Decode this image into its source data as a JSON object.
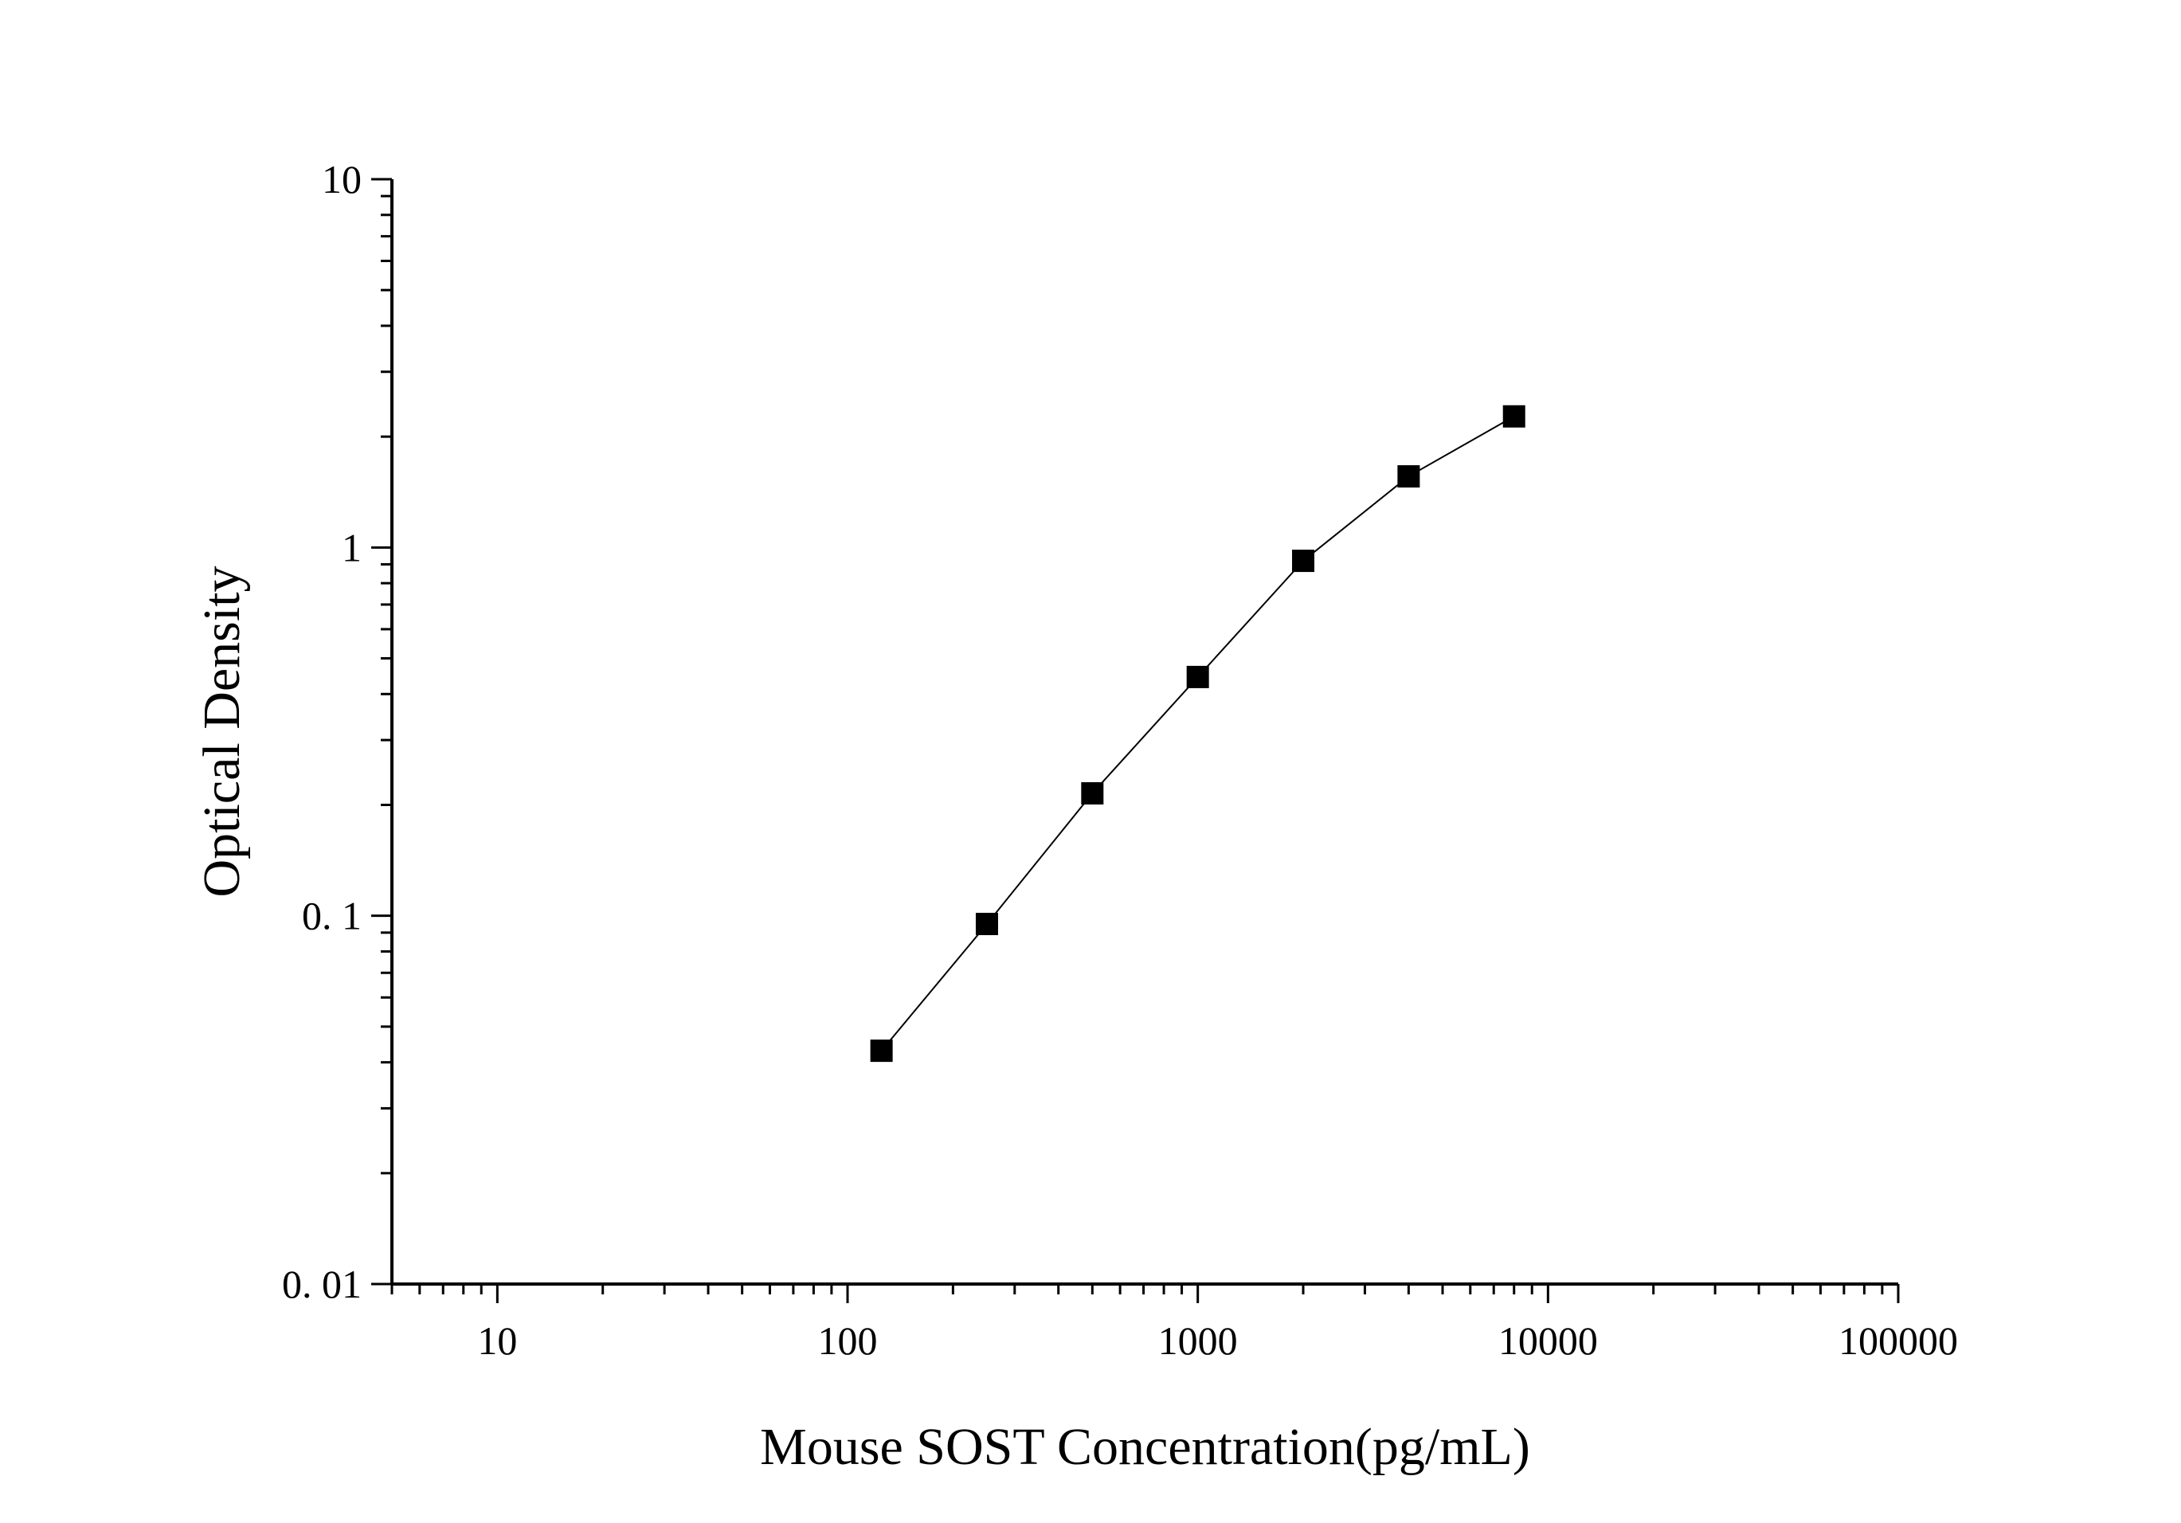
{
  "chart_data": {
    "type": "scatter",
    "title": "",
    "xlabel": "Mouse SOST Concentration(pg/mL)",
    "ylabel": "Optical Density",
    "x_scale": "log",
    "y_scale": "log",
    "xlim": [
      5,
      100000
    ],
    "ylim": [
      0.01,
      10
    ],
    "x_ticks": [
      10,
      100,
      1000,
      10000,
      100000
    ],
    "x_tick_labels": [
      "10",
      "100",
      "1000",
      "10000",
      "100000"
    ],
    "y_ticks": [
      0.01,
      0.1,
      1,
      10
    ],
    "y_tick_labels": [
      "0. 01",
      "0. 1",
      "1",
      "10"
    ],
    "grid": false,
    "legend": "none",
    "series": [
      {
        "marker": "square",
        "connected": true,
        "color": "#000000",
        "x": [
          125,
          250,
          500,
          1000,
          2000,
          4000,
          8000
        ],
        "y": [
          0.043,
          0.095,
          0.215,
          0.445,
          0.92,
          1.56,
          2.27
        ]
      }
    ]
  }
}
